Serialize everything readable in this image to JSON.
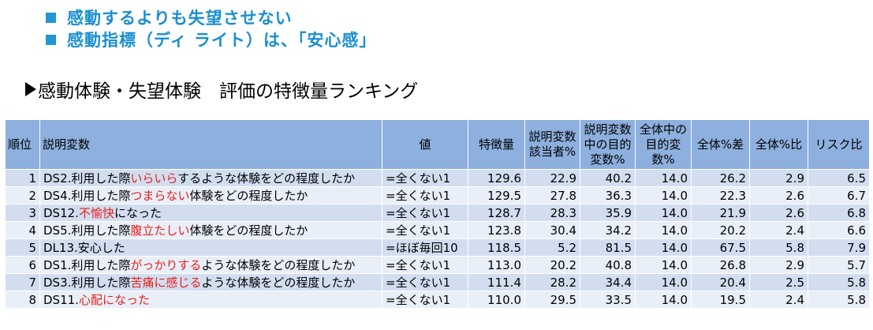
{
  "bullets": [
    "感動するよりも失望させない",
    "感動指標（ディ ライト）は、「安心感」"
  ],
  "section_title": "感動体験・失望体験　評価の特徴量ランキング",
  "table": {
    "headers": {
      "rank": "順位",
      "variable": "説明変数",
      "value": "値",
      "feature": "特徴量",
      "pct_applicable": "説明変数該当者%",
      "pct_target": "説明変数中の目的変数%",
      "pct_overall": "全体中の目的変数%",
      "diff": "全体%差",
      "ratio": "全体%比",
      "risk": "リスク比"
    },
    "rows": [
      {
        "rank": "1",
        "pre": "DS2.利用した際",
        "red": "いらいら",
        "post": "するような体験をどの程度したか",
        "value": "=全くない1",
        "feature": "129.6",
        "pct_applicable": "22.9",
        "pct_target": "40.2",
        "pct_overall": "14.0",
        "diff": "26.2",
        "ratio": "2.9",
        "risk": "6.5"
      },
      {
        "rank": "2",
        "pre": "DS4.利用した際",
        "red": "つまらない",
        "post": "体験をどの程度したか",
        "value": "=全くない1",
        "feature": "129.5",
        "pct_applicable": "27.8",
        "pct_target": "36.3",
        "pct_overall": "14.0",
        "diff": "22.3",
        "ratio": "2.6",
        "risk": "6.7"
      },
      {
        "rank": "3",
        "pre": "DS12.",
        "red": "不愉快",
        "post": "になった",
        "value": "=全くない1",
        "feature": "128.7",
        "pct_applicable": "28.3",
        "pct_target": "35.9",
        "pct_overall": "14.0",
        "diff": "21.9",
        "ratio": "2.6",
        "risk": "6.8"
      },
      {
        "rank": "4",
        "pre": "DS5.利用した際",
        "red": "腹立たしい",
        "post": "体験をどの程度したか",
        "value": "=全くない1",
        "feature": "123.8",
        "pct_applicable": "30.4",
        "pct_target": "34.2",
        "pct_overall": "14.0",
        "diff": "20.2",
        "ratio": "2.4",
        "risk": "6.6"
      },
      {
        "rank": "5",
        "pre": "DL13.安心した",
        "red": "",
        "post": "",
        "value": "=ほぼ毎回10",
        "feature": "118.5",
        "pct_applicable": "5.2",
        "pct_target": "81.5",
        "pct_overall": "14.0",
        "diff": "67.5",
        "ratio": "5.8",
        "risk": "7.9"
      },
      {
        "rank": "6",
        "pre": "DS1.利用した際",
        "red": "がっかりする",
        "post": "ような体験をどの程度したか",
        "value": "=全くない1",
        "feature": "113.0",
        "pct_applicable": "20.2",
        "pct_target": "40.8",
        "pct_overall": "14.0",
        "diff": "26.8",
        "ratio": "2.9",
        "risk": "5.7"
      },
      {
        "rank": "7",
        "pre": "DS3.利用した際",
        "red": "苦痛に感じる",
        "post": "ような体験をどの程度したか",
        "value": "=全くない1",
        "feature": "111.4",
        "pct_applicable": "28.2",
        "pct_target": "34.4",
        "pct_overall": "14.0",
        "diff": "20.4",
        "ratio": "2.5",
        "risk": "5.8"
      },
      {
        "rank": "8",
        "pre": "DS11.",
        "red": "心配になった",
        "post": "",
        "value": "=全くない1",
        "feature": "110.0",
        "pct_applicable": "29.5",
        "pct_target": "33.5",
        "pct_overall": "14.0",
        "diff": "19.5",
        "ratio": "2.4",
        "risk": "5.8"
      }
    ]
  }
}
